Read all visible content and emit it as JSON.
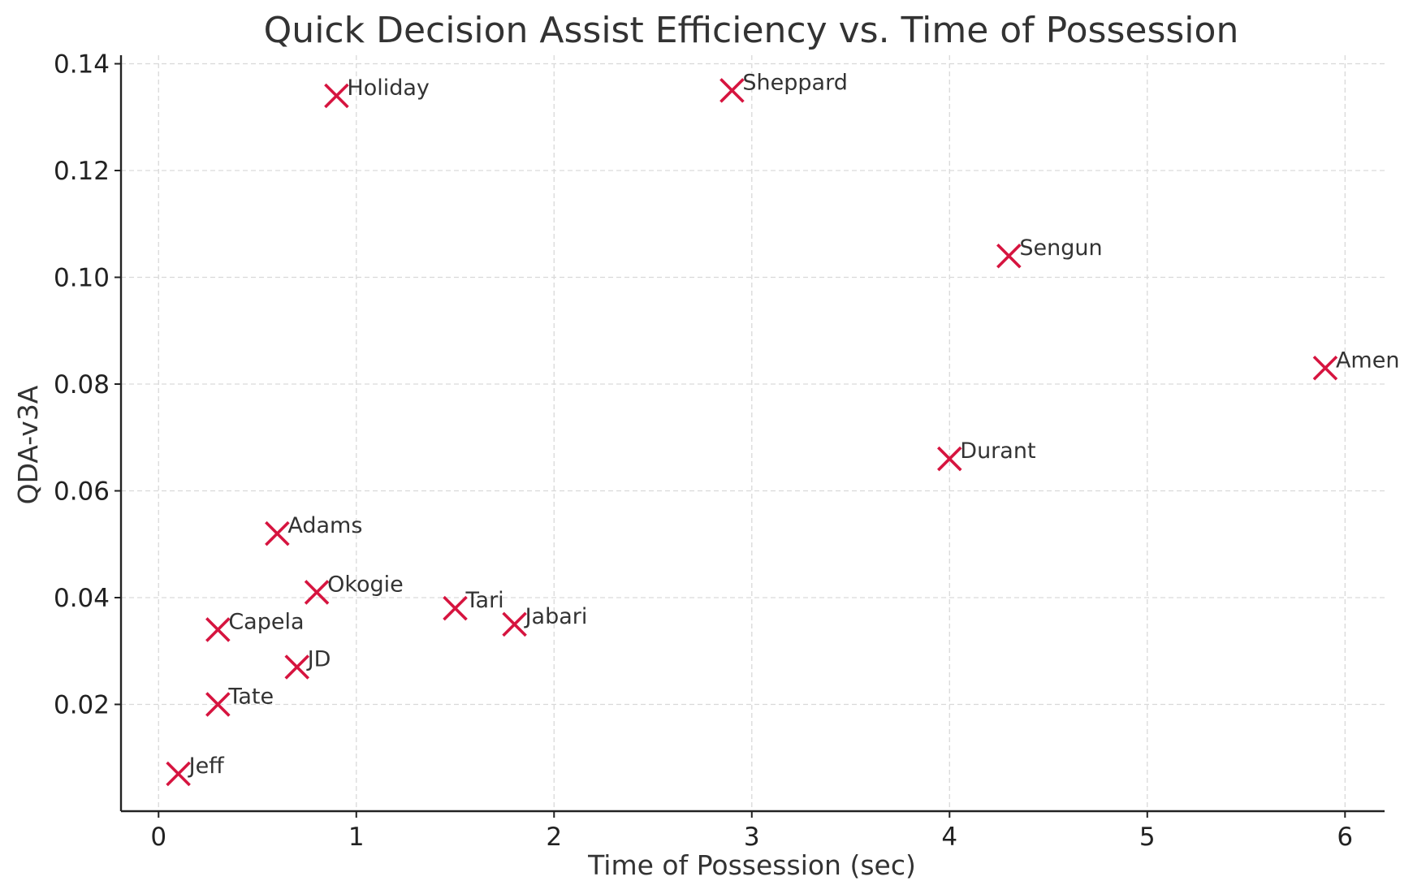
{
  "chart_data": {
    "type": "scatter",
    "title": "Quick Decision Assist Efficiency vs. Time of Possession",
    "xlabel": "Time of Possession (sec)",
    "ylabel": "QDA-v3A",
    "xlim": [
      -0.19,
      6.2
    ],
    "ylim": [
      0.0,
      0.1416
    ],
    "xticks": [
      0,
      1,
      2,
      3,
      4,
      5,
      6
    ],
    "xtick_labels": [
      "0",
      "1",
      "2",
      "3",
      "4",
      "5",
      "6"
    ],
    "yticks": [
      0.02,
      0.04,
      0.06,
      0.08,
      0.1,
      0.12,
      0.14
    ],
    "ytick_labels": [
      "0.02",
      "0.04",
      "0.06",
      "0.08",
      "0.10",
      "0.12",
      "0.14"
    ],
    "grid": true,
    "marker": "x",
    "marker_color": "#d6143f",
    "points": [
      {
        "label": "Holiday",
        "x": 0.9,
        "y": 0.134
      },
      {
        "label": "Sheppard",
        "x": 2.9,
        "y": 0.135
      },
      {
        "label": "Sengun",
        "x": 4.3,
        "y": 0.104
      },
      {
        "label": "Amen",
        "x": 5.9,
        "y": 0.083
      },
      {
        "label": "Durant",
        "x": 4.0,
        "y": 0.066
      },
      {
        "label": "Adams",
        "x": 0.6,
        "y": 0.052
      },
      {
        "label": "Okogie",
        "x": 0.8,
        "y": 0.041
      },
      {
        "label": "Tari",
        "x": 1.5,
        "y": 0.038
      },
      {
        "label": "Jabari",
        "x": 1.8,
        "y": 0.035
      },
      {
        "label": "Capela",
        "x": 0.3,
        "y": 0.034
      },
      {
        "label": "JD",
        "x": 0.7,
        "y": 0.027
      },
      {
        "label": "Tate",
        "x": 0.3,
        "y": 0.02
      },
      {
        "label": "Jeff",
        "x": 0.1,
        "y": 0.007
      }
    ]
  }
}
